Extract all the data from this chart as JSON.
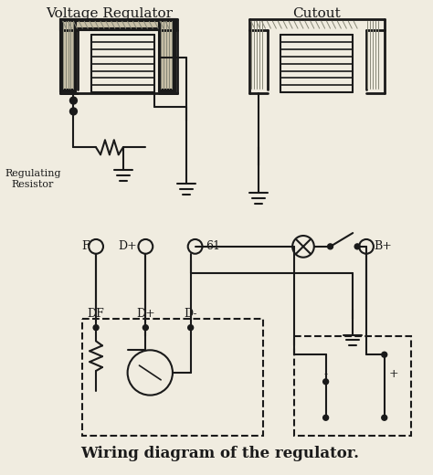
{
  "title": "Wiring diagram of the regulator.",
  "label_voltage_regulator": "Voltage Regulator",
  "label_cutout": "Cutout",
  "label_regulating_resistor": "Regulating\nResistor",
  "label_F": "F",
  "label_D_plus": "D+",
  "label_61": "61",
  "label_B_plus": "B+",
  "label_DF": "DF",
  "label_D_plus2": "D+",
  "label_D_minus": "D-",
  "label_minus": "-",
  "label_plus": "+",
  "bg_color": "#f0ece0",
  "line_color": "#1a1a1a",
  "title_fontsize": 12,
  "label_fontsize": 9
}
